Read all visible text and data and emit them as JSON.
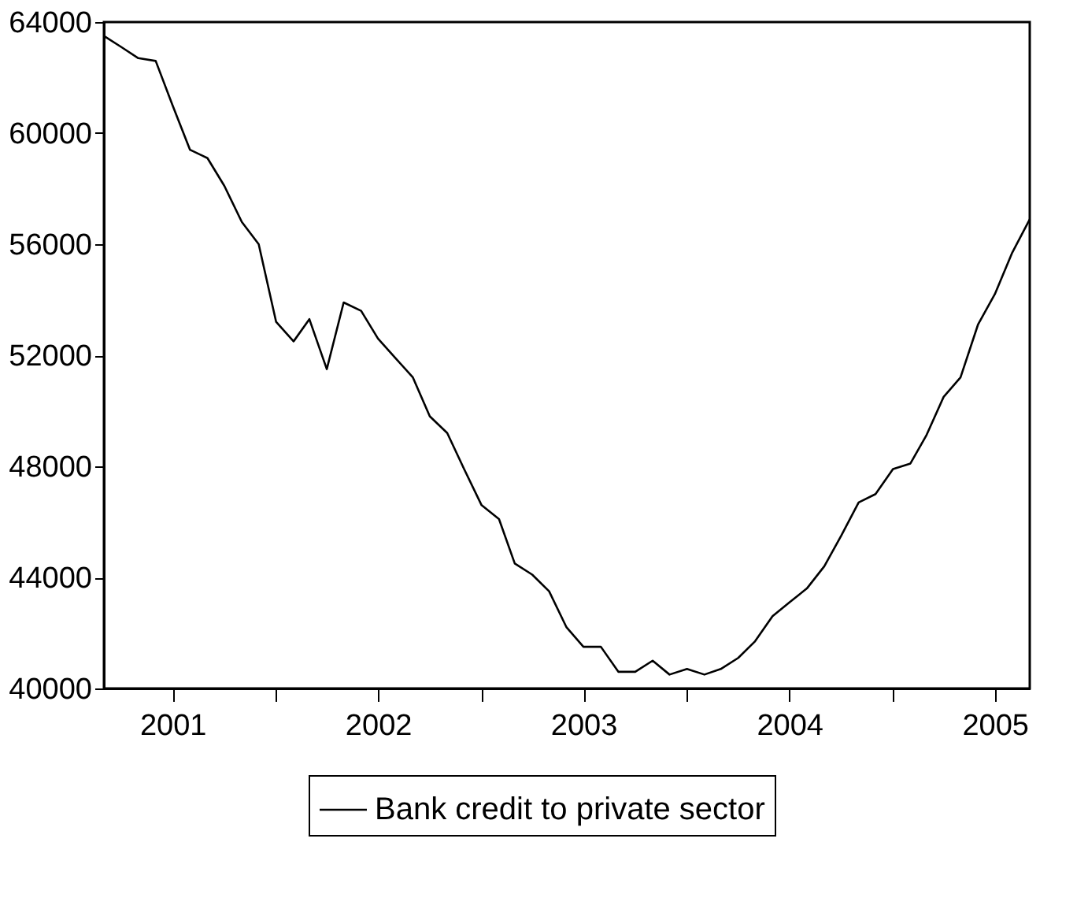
{
  "chart_data": {
    "type": "line",
    "x": [
      "2001-03",
      "2001-04",
      "2001-05",
      "2001-06",
      "2001-07",
      "2001-08",
      "2001-09",
      "2001-10",
      "2001-11",
      "2001-12",
      "2002-01",
      "2002-02",
      "2002-03",
      "2002-04",
      "2002-05",
      "2002-06",
      "2002-07",
      "2002-08",
      "2002-09",
      "2002-10",
      "2002-11",
      "2002-12",
      "2003-01",
      "2003-02",
      "2003-03",
      "2003-04",
      "2003-05",
      "2003-06",
      "2003-07",
      "2003-08",
      "2003-09",
      "2003-10",
      "2003-11",
      "2003-12",
      "2004-01",
      "2004-02",
      "2004-03",
      "2004-04",
      "2004-05",
      "2004-06",
      "2004-07",
      "2004-08",
      "2004-09",
      "2004-10",
      "2004-11",
      "2004-12",
      "2005-01",
      "2005-02",
      "2005-03",
      "2005-04",
      "2005-05",
      "2005-06",
      "2005-07",
      "2005-08",
      "2005-09"
    ],
    "series": [
      {
        "name": "Bank credit to private sector",
        "color": "#000000",
        "values": [
          63500,
          63100,
          62700,
          62600,
          61000,
          59400,
          59100,
          58100,
          56800,
          56000,
          53200,
          52500,
          53300,
          51500,
          53900,
          53600,
          52600,
          51900,
          51200,
          49800,
          49200,
          47900,
          46600,
          46100,
          44500,
          44100,
          43500,
          42200,
          41500,
          41500,
          40600,
          40600,
          41000,
          40500,
          40700,
          40500,
          40700,
          41100,
          41700,
          42600,
          43100,
          43600,
          44400,
          45500,
          46700,
          47000,
          47900,
          48100,
          49100,
          50500,
          51200,
          53100,
          54200,
          55700,
          56900
        ]
      }
    ],
    "xlim": [
      "2001-03",
      "2005-09"
    ],
    "xticks": [
      {
        "value": "2001-07",
        "label": "2001"
      },
      {
        "value": "2002-01",
        "label": null
      },
      {
        "value": "2002-07",
        "label": "2002"
      },
      {
        "value": "2003-01",
        "label": null
      },
      {
        "value": "2003-07",
        "label": "2003"
      },
      {
        "value": "2004-01",
        "label": null
      },
      {
        "value": "2004-07",
        "label": "2004"
      },
      {
        "value": "2005-01",
        "label": null
      },
      {
        "value": "2005-07",
        "label": "2005"
      }
    ],
    "ylim": [
      40000,
      64000
    ],
    "yticks": [
      40000,
      44000,
      48000,
      52000,
      56000,
      60000,
      64000
    ],
    "grid": false,
    "legend": "bottom",
    "line_style": "solid"
  }
}
